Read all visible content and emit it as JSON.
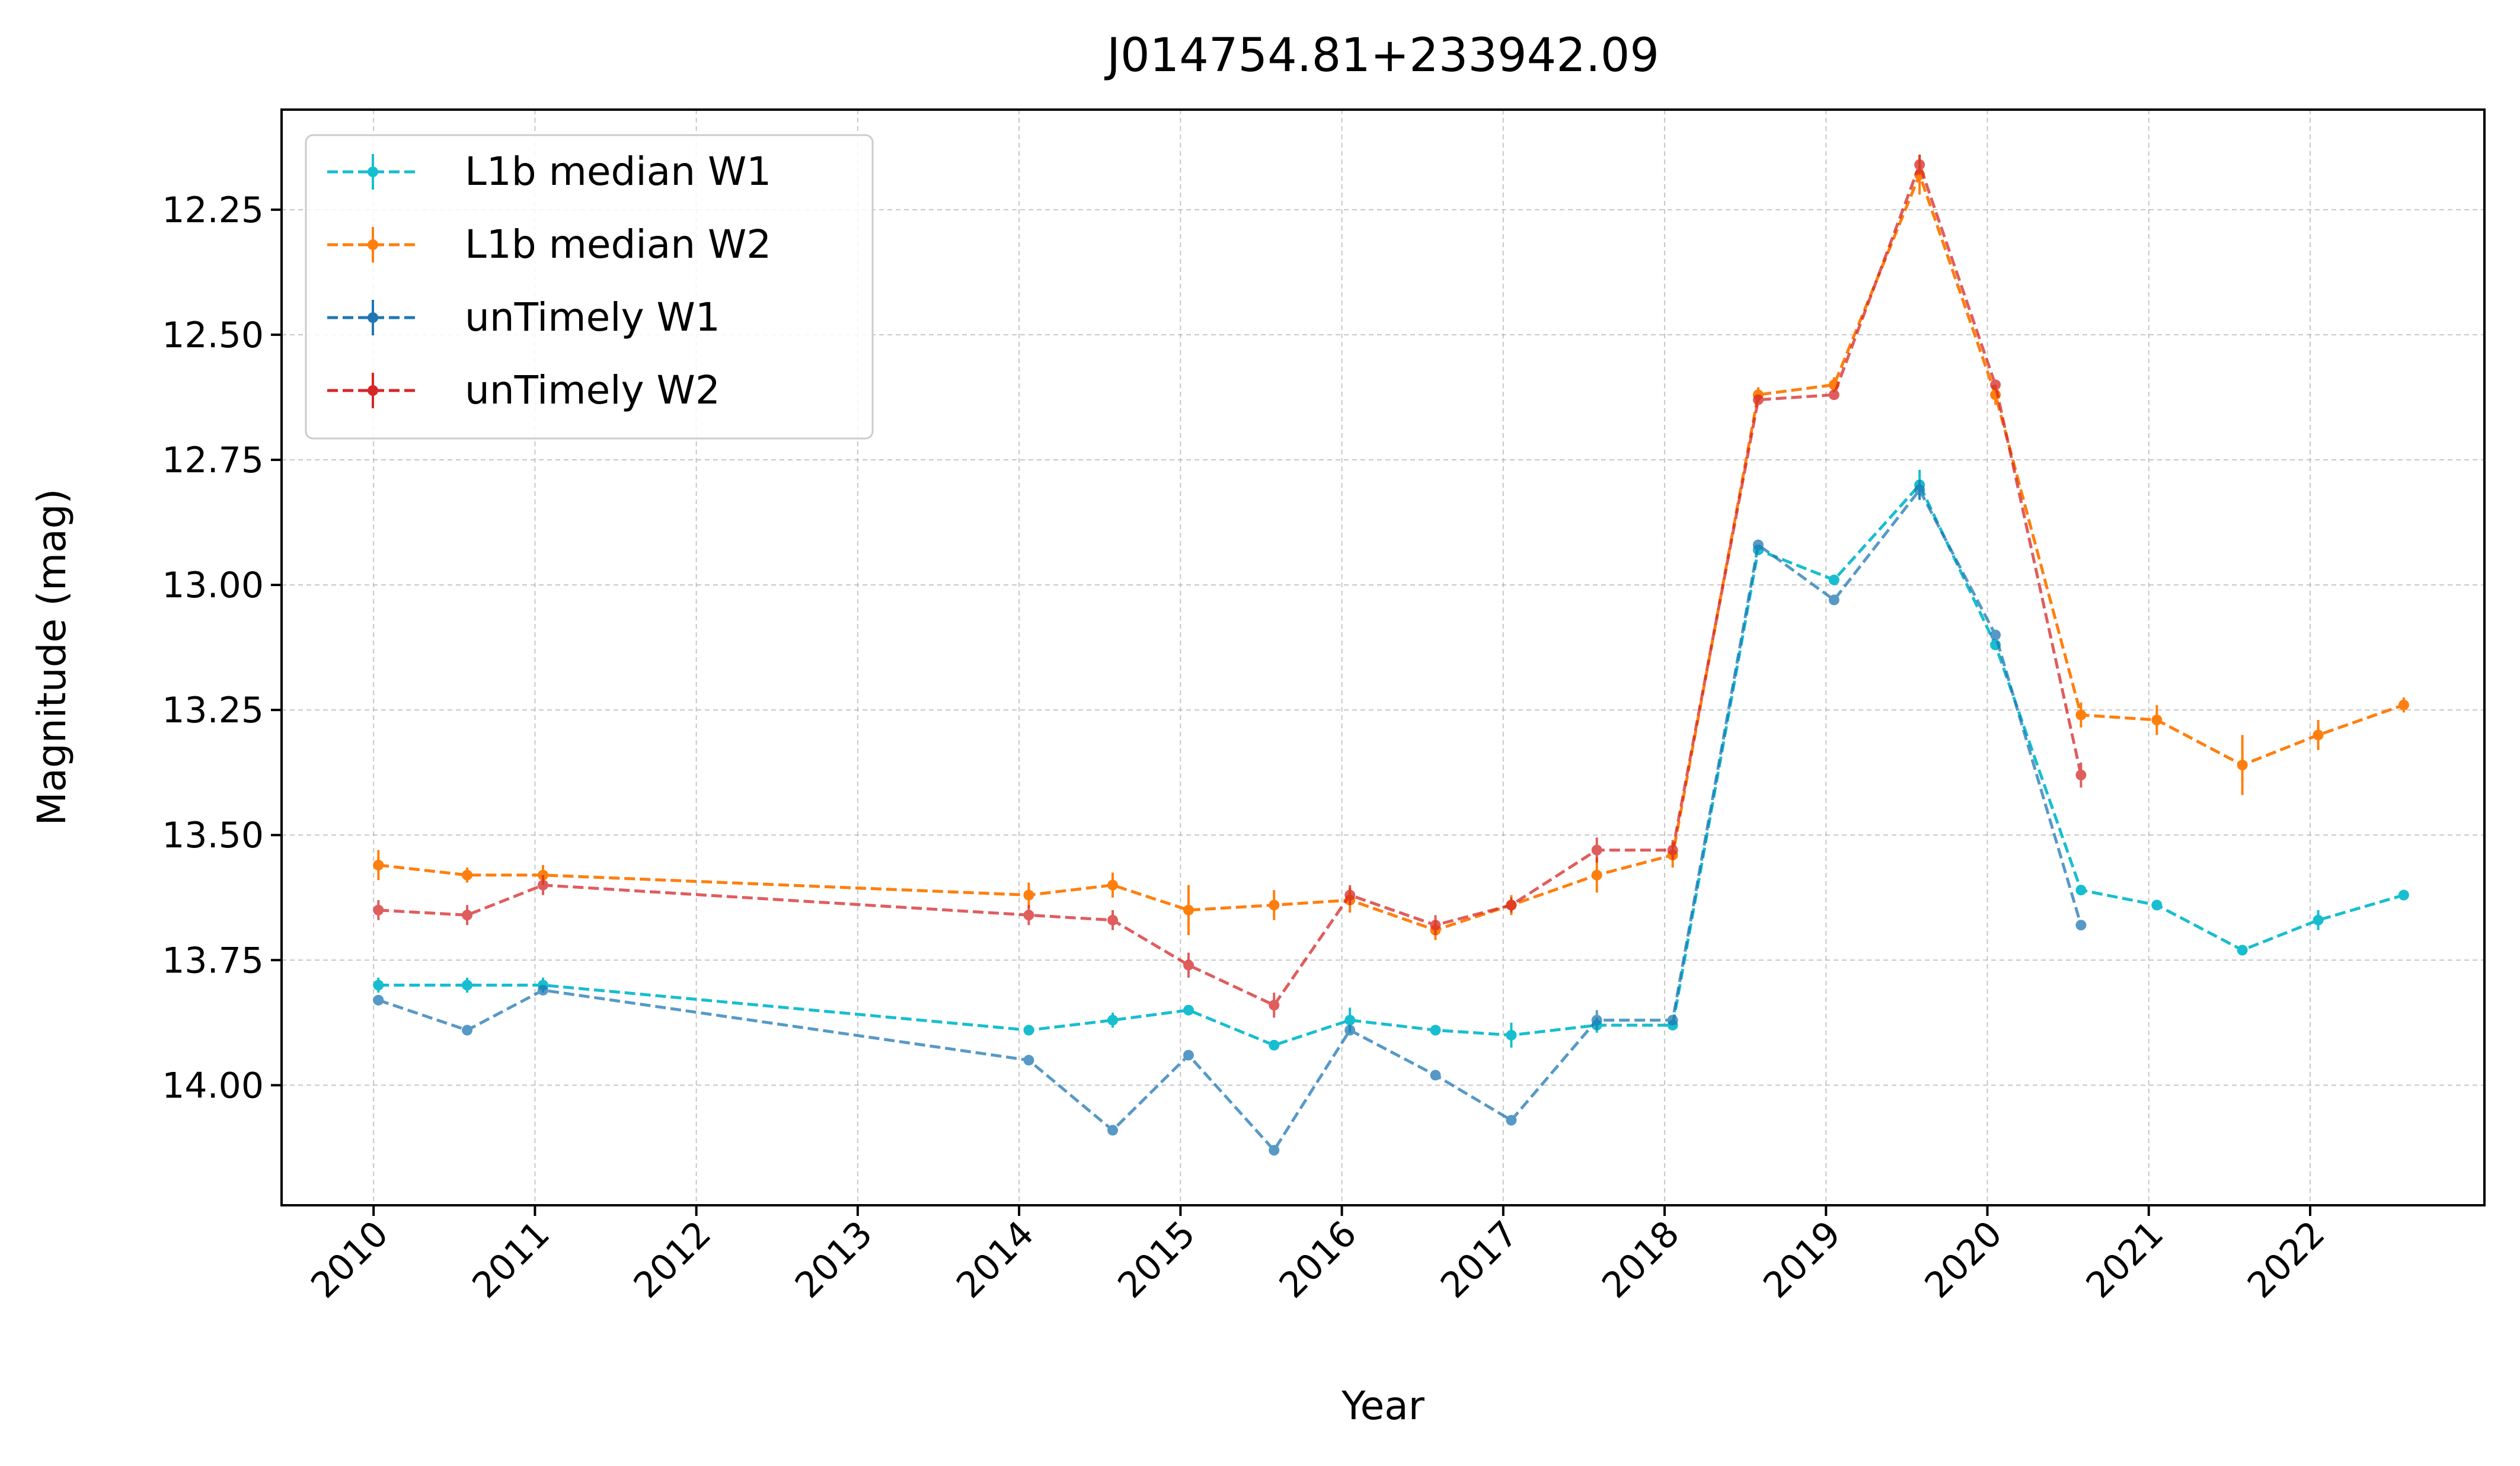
{
  "chart_data": {
    "type": "line",
    "title": "J014754.81+233942.09",
    "xlabel": "Year",
    "ylabel": "Magnitude (mag)",
    "xlim": [
      2009.43,
      2023.08
    ],
    "ylim": [
      14.24,
      12.05
    ],
    "y_inverted": true,
    "grid": true,
    "legend_position": "top-left",
    "x_ticks": [
      2010,
      2011,
      2012,
      2013,
      2014,
      2015,
      2016,
      2017,
      2018,
      2019,
      2020,
      2021,
      2022
    ],
    "x_tick_labels": [
      "2010",
      "2011",
      "2012",
      "2013",
      "2014",
      "2015",
      "2016",
      "2017",
      "2018",
      "2019",
      "2020",
      "2021",
      "2022"
    ],
    "y_ticks": [
      12.25,
      12.5,
      12.75,
      13.0,
      13.25,
      13.5,
      13.75,
      14.0
    ],
    "y_tick_labels": [
      "12.25",
      "12.50",
      "12.75",
      "13.00",
      "13.25",
      "13.50",
      "13.75",
      "14.00"
    ],
    "series": [
      {
        "name": "L1b median W1",
        "color": "#17becf",
        "x": [
          2010.03,
          2010.58,
          2011.05,
          2014.06,
          2014.58,
          2015.05,
          2015.58,
          2016.05,
          2016.58,
          2017.05,
          2017.58,
          2018.05,
          2018.58,
          2019.05,
          2019.58,
          2020.05,
          2020.58,
          2021.05,
          2021.58,
          2022.05,
          2022.58
        ],
        "y": [
          13.8,
          13.8,
          13.8,
          13.89,
          13.87,
          13.85,
          13.92,
          13.87,
          13.89,
          13.9,
          13.88,
          13.88,
          12.93,
          12.99,
          12.8,
          13.12,
          13.61,
          13.64,
          13.73,
          13.67,
          13.62
        ],
        "err": [
          0.015,
          0.015,
          0.015,
          0.01,
          0.015,
          0.01,
          0.01,
          0.025,
          0.01,
          0.025,
          0.015,
          0.01,
          0.01,
          0.01,
          0.03,
          0.01,
          0.01,
          0.01,
          0.01,
          0.02,
          0.01
        ]
      },
      {
        "name": "L1b median W2",
        "color": "#ff7f0e",
        "x": [
          2010.03,
          2010.58,
          2011.05,
          2014.06,
          2014.58,
          2015.05,
          2015.58,
          2016.05,
          2016.58,
          2017.05,
          2017.58,
          2018.05,
          2018.58,
          2019.05,
          2019.58,
          2020.05,
          2020.58,
          2021.05,
          2021.58,
          2022.05,
          2022.58
        ],
        "y": [
          13.56,
          13.58,
          13.58,
          13.62,
          13.6,
          13.65,
          13.64,
          13.63,
          13.69,
          13.64,
          13.58,
          13.54,
          12.62,
          12.6,
          12.18,
          12.62,
          13.26,
          13.27,
          13.36,
          13.3,
          13.24
        ],
        "err": [
          0.03,
          0.015,
          0.02,
          0.025,
          0.025,
          0.05,
          0.03,
          0.025,
          0.02,
          0.02,
          0.035,
          0.025,
          0.015,
          0.015,
          0.04,
          0.02,
          0.025,
          0.03,
          0.06,
          0.03,
          0.015
        ]
      },
      {
        "name": "unTimely W1",
        "color": "#1f77b4",
        "x": [
          2010.03,
          2010.58,
          2011.05,
          2014.06,
          2014.58,
          2015.05,
          2015.58,
          2016.05,
          2016.58,
          2017.05,
          2017.58,
          2018.05,
          2018.58,
          2019.05,
          2019.58,
          2020.05,
          2020.58
        ],
        "y": [
          13.83,
          13.89,
          13.81,
          13.95,
          14.09,
          13.94,
          14.13,
          13.89,
          13.98,
          14.07,
          13.87,
          13.87,
          12.92,
          13.03,
          12.81,
          13.1,
          13.68
        ],
        "err": [
          0.01,
          0.01,
          0.01,
          0.01,
          0.01,
          0.01,
          0.01,
          0.01,
          0.01,
          0.01,
          0.02,
          0.01,
          0.01,
          0.01,
          0.02,
          0.01,
          0.01
        ]
      },
      {
        "name": "unTimely W2",
        "color": "#d62728",
        "x": [
          2010.03,
          2010.58,
          2011.05,
          2014.06,
          2014.58,
          2015.05,
          2015.58,
          2016.05,
          2016.58,
          2017.05,
          2017.58,
          2018.05,
          2018.58,
          2019.05,
          2019.58,
          2020.05,
          2020.58
        ],
        "y": [
          13.65,
          13.66,
          13.6,
          13.66,
          13.67,
          13.76,
          13.84,
          13.62,
          13.68,
          13.64,
          13.53,
          13.53,
          12.63,
          12.62,
          12.16,
          12.6,
          13.38
        ],
        "err": [
          0.02,
          0.02,
          0.02,
          0.02,
          0.02,
          0.025,
          0.025,
          0.02,
          0.02,
          0.015,
          0.025,
          0.02,
          0.01,
          0.01,
          0.02,
          0.01,
          0.025
        ]
      }
    ]
  }
}
